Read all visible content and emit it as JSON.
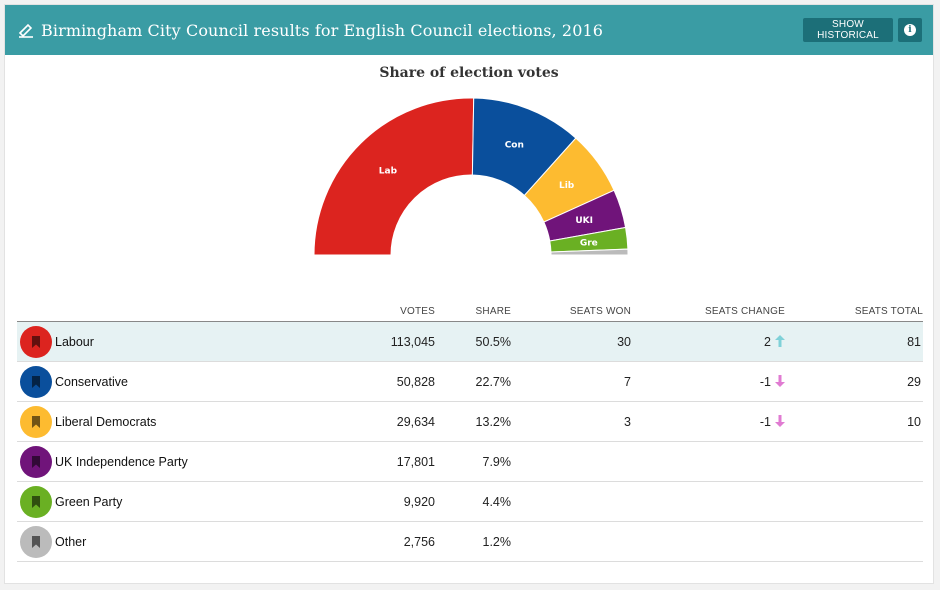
{
  "header": {
    "title": "Birmingham City Council results for English Council elections, 2016",
    "show_historical_label": "SHOW HISTORICAL",
    "info_glyph": "i",
    "color": "#3a9ca4",
    "button_color": "#1c6f78",
    "edit_icon": "pencil-icon",
    "info_icon": "info-icon"
  },
  "chart_data": {
    "type": "pie",
    "variant": "semi-donut",
    "title": "Share of election votes",
    "slices": [
      {
        "label": "Lab",
        "value": 50.5,
        "color": "#dc241f"
      },
      {
        "label": "Con",
        "value": 22.7,
        "color": "#0a4f9c"
      },
      {
        "label": "Lib",
        "value": 13.2,
        "color": "#fdbb30"
      },
      {
        "label": "UKI",
        "value": 7.9,
        "color": "#70147a"
      },
      {
        "label": "Gre",
        "value": 4.4,
        "color": "#6ab023"
      },
      {
        "label": "",
        "value": 1.2,
        "color": "#bbbbbb"
      }
    ]
  },
  "table": {
    "columns": {
      "votes": "VOTES",
      "share": "SHARE",
      "seats_won": "SEATS WON",
      "seats_change": "SEATS CHANGE",
      "seats_total": "SEATS TOTAL"
    },
    "rows": [
      {
        "party": "Labour",
        "color": "#dc241f",
        "votes": "113,045",
        "share": "50.5%",
        "seats_won": "30",
        "seats_change": "2",
        "change_dir": "up",
        "seats_total": "81"
      },
      {
        "party": "Conservative",
        "color": "#0a4f9c",
        "votes": "50,828",
        "share": "22.7%",
        "seats_won": "7",
        "seats_change": "-1",
        "change_dir": "down",
        "seats_total": "29"
      },
      {
        "party": "Liberal Democrats",
        "color": "#fdbb30",
        "votes": "29,634",
        "share": "13.2%",
        "seats_won": "3",
        "seats_change": "-1",
        "change_dir": "down",
        "seats_total": "10"
      },
      {
        "party": "UK Independence Party",
        "color": "#70147a",
        "votes": "17,801",
        "share": "7.9%",
        "seats_won": "",
        "seats_change": "",
        "change_dir": "",
        "seats_total": ""
      },
      {
        "party": "Green Party",
        "color": "#6ab023",
        "votes": "9,920",
        "share": "4.4%",
        "seats_won": "",
        "seats_change": "",
        "change_dir": "",
        "seats_total": ""
      },
      {
        "party": "Other",
        "color": "#bbbbbb",
        "votes": "2,756",
        "share": "1.2%",
        "seats_won": "",
        "seats_change": "",
        "change_dir": "",
        "seats_total": ""
      }
    ],
    "highlight_color": "#e6f2f3",
    "arrow_up_color": "#7fd1d8",
    "arrow_down_color": "#e07bd2",
    "party_icon": "bookmark-icon"
  }
}
